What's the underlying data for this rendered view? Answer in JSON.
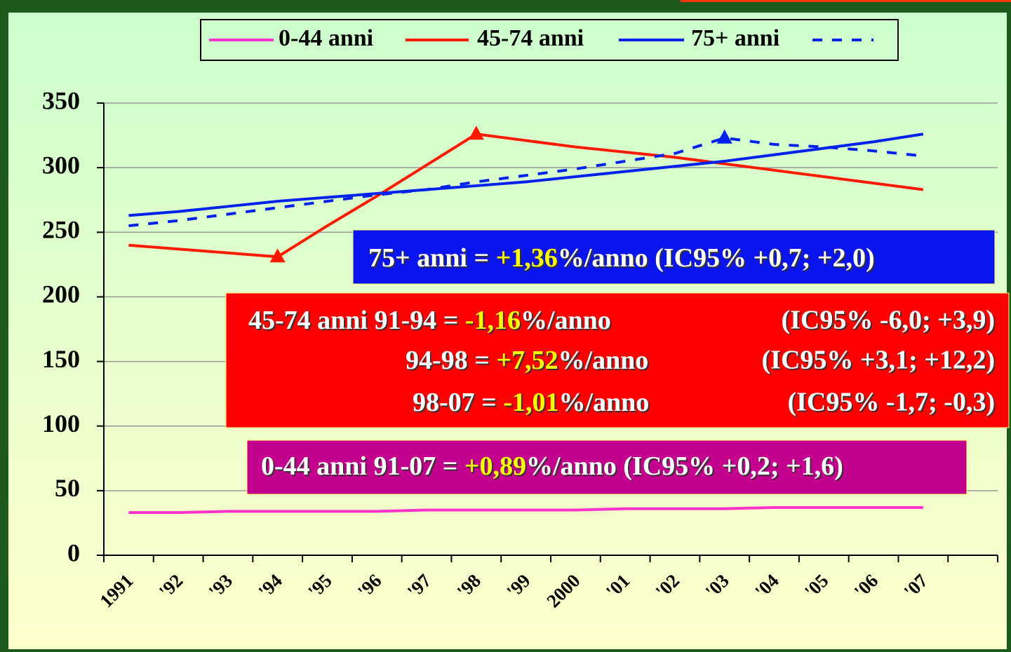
{
  "chart_data": {
    "type": "line",
    "categories": [
      "1991",
      "'92",
      "'93",
      "'94",
      "'95",
      "'96",
      "'97",
      "'98",
      "'99",
      "2000",
      "'01",
      "'02",
      "'03",
      "'04",
      "'05",
      "'06",
      "'07",
      null
    ],
    "series": [
      {
        "name": "0-44 anni",
        "color": "#ff33cc",
        "style": "solid",
        "values": [
          33,
          33,
          34,
          34,
          34,
          34,
          35,
          35,
          35,
          35,
          36,
          36,
          36,
          37,
          37,
          37,
          37,
          null
        ]
      },
      {
        "name": "45-74 anni",
        "color": "#ff1a00",
        "style": "solid",
        "markers": [
          3,
          7
        ],
        "values": [
          240,
          237,
          234,
          231,
          255,
          278,
          302,
          326,
          321,
          316,
          312,
          308,
          303,
          298,
          293,
          288,
          283,
          null
        ]
      },
      {
        "name": "75+ anni",
        "color": "#0022ee",
        "style": "solid",
        "values": [
          263,
          266,
          270,
          274,
          277,
          280,
          283,
          286,
          289,
          293,
          297,
          301,
          305,
          310,
          315,
          320,
          326,
          null
        ]
      },
      {
        "color": "#0022ee",
        "style": "dashed",
        "markers": [
          12
        ],
        "values": [
          255,
          259,
          264,
          269,
          274,
          279,
          283,
          289,
          294,
          299,
          305,
          311,
          323,
          318,
          316,
          313,
          309,
          null
        ]
      }
    ],
    "ylim": [
      0,
      350
    ],
    "yticks": [
      0,
      50,
      100,
      150,
      200,
      250,
      300,
      350
    ],
    "grid": true,
    "legend": "top",
    "annotations": [
      {
        "color": "#0a14ee",
        "lines": [
          {
            "parts": [
              "75+ anni = ",
              "+1,36",
              "%/anno (IC95% +0,7; +2,0)"
            ]
          }
        ]
      },
      {
        "color": "#ff0000",
        "lines": [
          {
            "parts": [
              "45-74 anni 91-94 = ",
              "-1,16",
              "%/anno"
            ],
            "ci": "(IC95% -6,0; +3,9)"
          },
          {
            "parts": [
              "94-98 = ",
              "+7,52",
              "%/anno"
            ],
            "ci": "(IC95% +3,1; +12,2)"
          },
          {
            "parts": [
              "98-07 = ",
              "-1,01",
              "%/anno"
            ],
            "ci": "(IC95% -1,7; -0,3)"
          }
        ]
      },
      {
        "color": "#c4008e",
        "lines": [
          {
            "parts": [
              "0-44 anni 91-07 = ",
              "+0,89",
              "%/anno (IC95% +0,2; +1,6)"
            ]
          }
        ]
      }
    ]
  }
}
